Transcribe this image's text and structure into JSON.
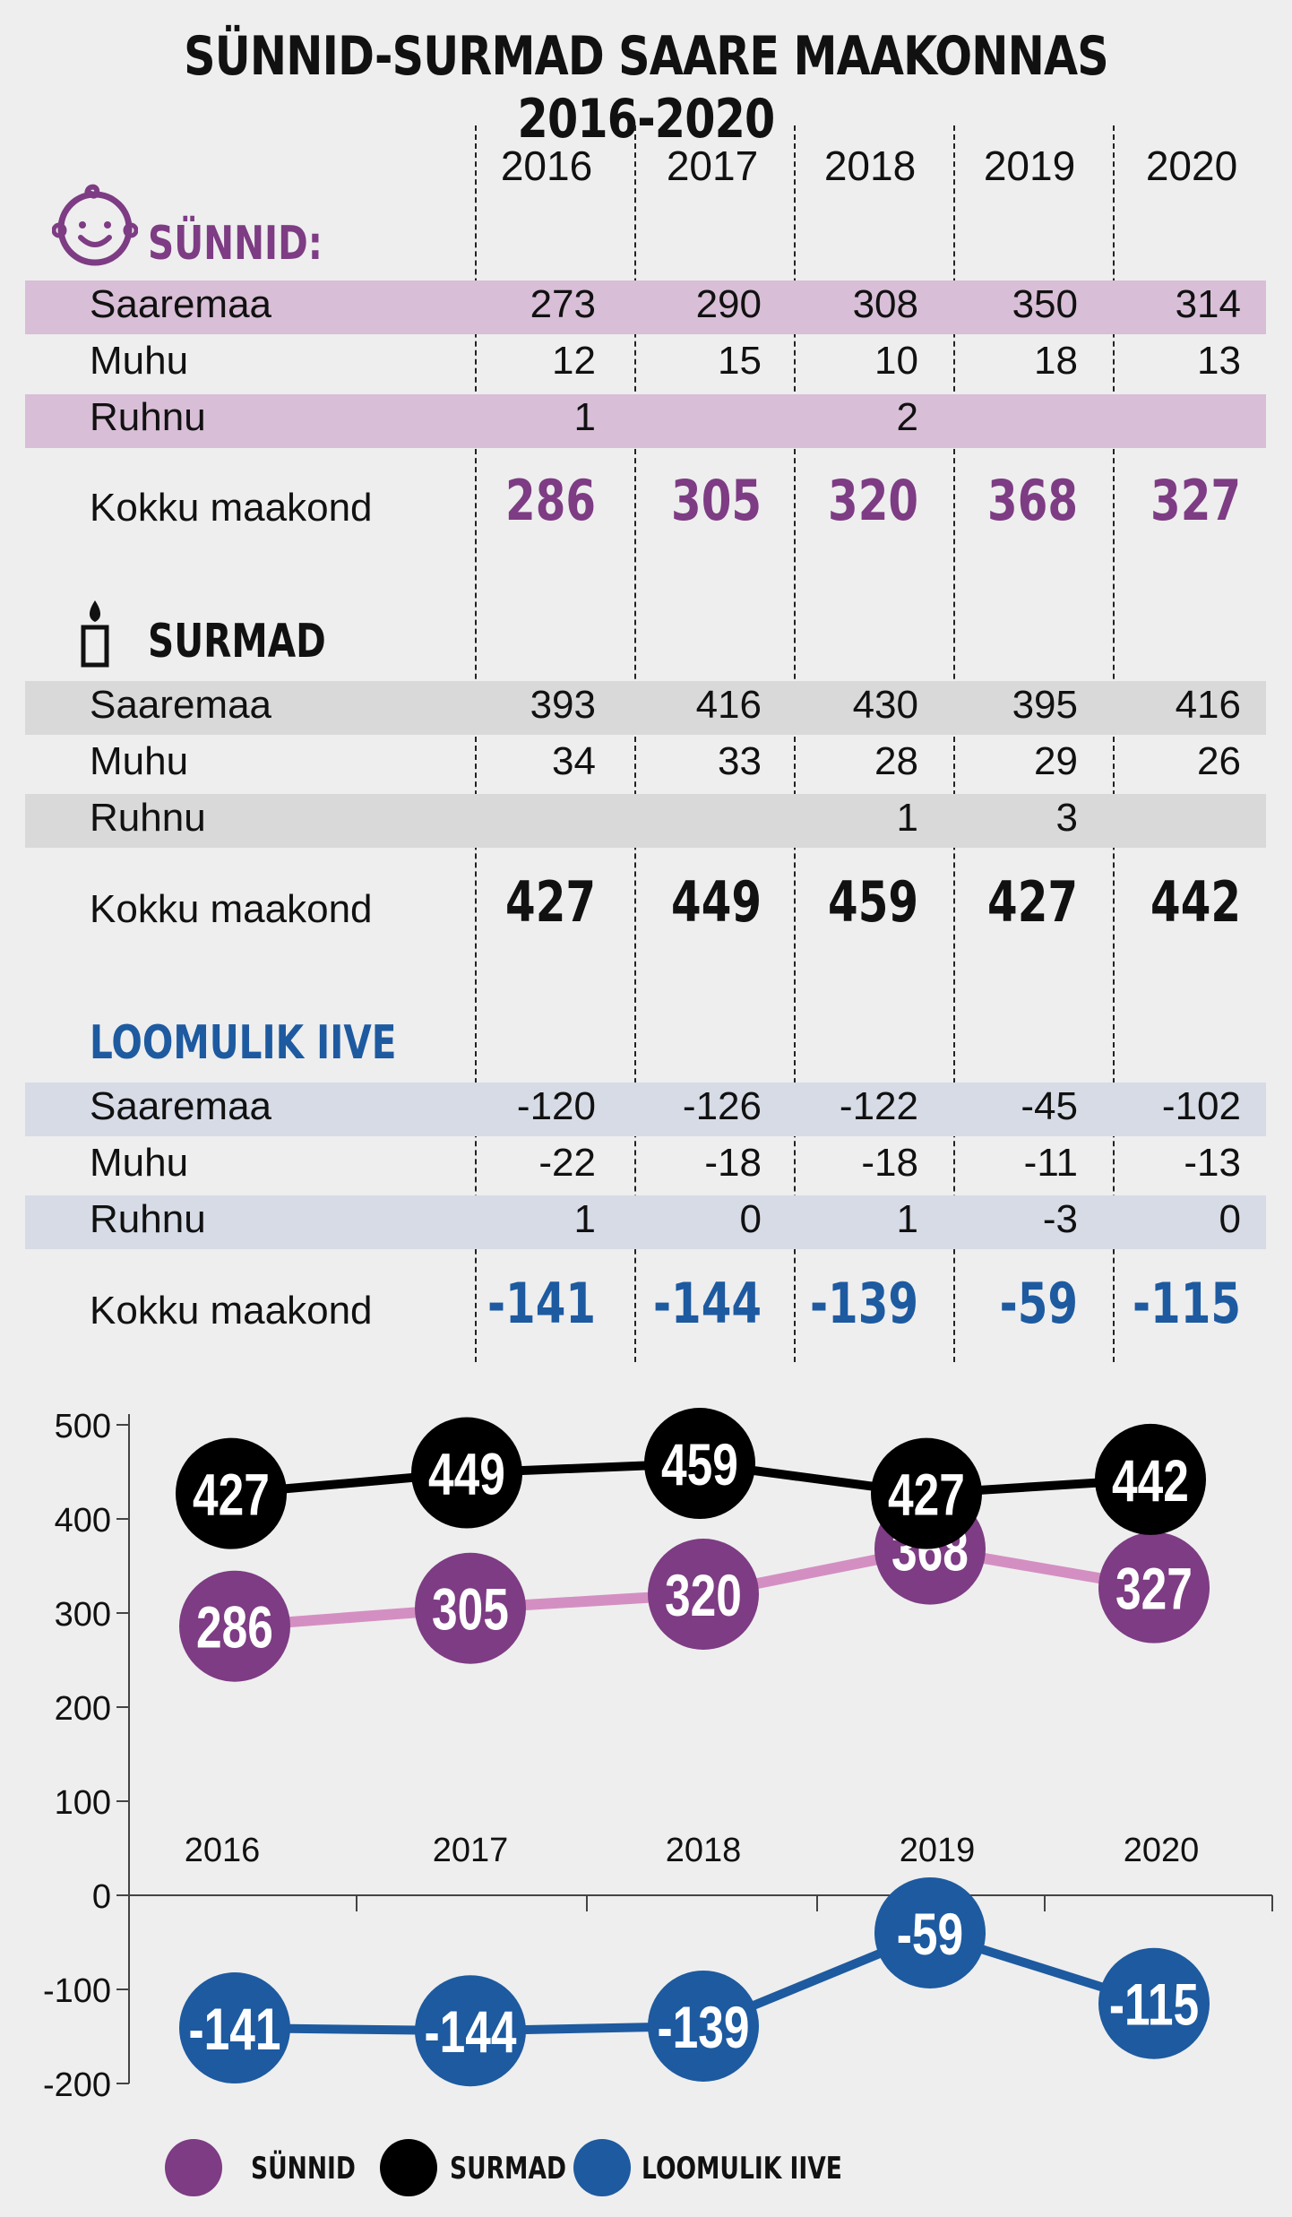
{
  "title": "SÜNNID-SURMAD SAARE MAAKONNAS 2016-2020",
  "years": [
    "2016",
    "2017",
    "2018",
    "2019",
    "2020"
  ],
  "sections": {
    "births": {
      "heading": "SÜNNID:",
      "color": "#7d3c83",
      "band_color": "#d8bed6",
      "rows": [
        {
          "label": "Saaremaa",
          "values": [
            "273",
            "290",
            "308",
            "350",
            "314"
          ]
        },
        {
          "label": "Muhu",
          "values": [
            "12",
            "15",
            "10",
            "18",
            "13"
          ]
        },
        {
          "label": "Ruhnu",
          "values": [
            "1",
            "",
            "2",
            "",
            ""
          ]
        }
      ],
      "total_label": "Kokku maakond",
      "totals": [
        "286",
        "305",
        "320",
        "368",
        "327"
      ]
    },
    "deaths": {
      "heading": "SURMAD",
      "color": "#111111",
      "band_color": "#d9d9d9",
      "rows": [
        {
          "label": "Saaremaa",
          "values": [
            "393",
            "416",
            "430",
            "395",
            "416"
          ]
        },
        {
          "label": "Muhu",
          "values": [
            "34",
            "33",
            "28",
            "29",
            "26"
          ]
        },
        {
          "label": "Ruhnu",
          "values": [
            "",
            "",
            "1",
            "3",
            ""
          ]
        }
      ],
      "total_label": "Kokku maakond",
      "totals": [
        "427",
        "449",
        "459",
        "427",
        "442"
      ]
    },
    "increase": {
      "heading": "LOOMULIK IIVE",
      "color": "#1d5aa0",
      "band_color": "#d6dbe6",
      "rows": [
        {
          "label": "Saaremaa",
          "values": [
            "-120",
            "-126",
            "-122",
            "-45",
            "-102"
          ]
        },
        {
          "label": "Muhu",
          "values": [
            "-22",
            "-18",
            "-18",
            "-11",
            "-13"
          ]
        },
        {
          "label": "Ruhnu",
          "values": [
            "1",
            "0",
            "1",
            "-3",
            "0"
          ]
        }
      ],
      "total_label": "Kokku maakond",
      "totals": [
        "-141",
        "-144",
        "-139",
        "-59",
        "-115"
      ]
    }
  },
  "chart_data": {
    "type": "line",
    "categories": [
      "2016",
      "2017",
      "2018",
      "2019",
      "2020"
    ],
    "ylim": [
      -200,
      500
    ],
    "y_ticks": [
      500,
      400,
      300,
      200,
      100,
      0,
      -100,
      -200
    ],
    "grid": false,
    "legend_position": "bottom",
    "series": [
      {
        "name": "SÜNNID",
        "values": [
          286,
          305,
          320,
          368,
          327
        ],
        "color": "#7d3c83",
        "line_color": "#d48fc2"
      },
      {
        "name": "SURMAD",
        "values": [
          427,
          449,
          459,
          427,
          442
        ],
        "color": "#000000",
        "line_color": "#000000"
      },
      {
        "name": "LOOMULIK IIVE",
        "values": [
          -141,
          -144,
          -139,
          -59,
          -115
        ],
        "color": "#1d5aa0",
        "line_color": "#1d5aa0"
      }
    ]
  }
}
